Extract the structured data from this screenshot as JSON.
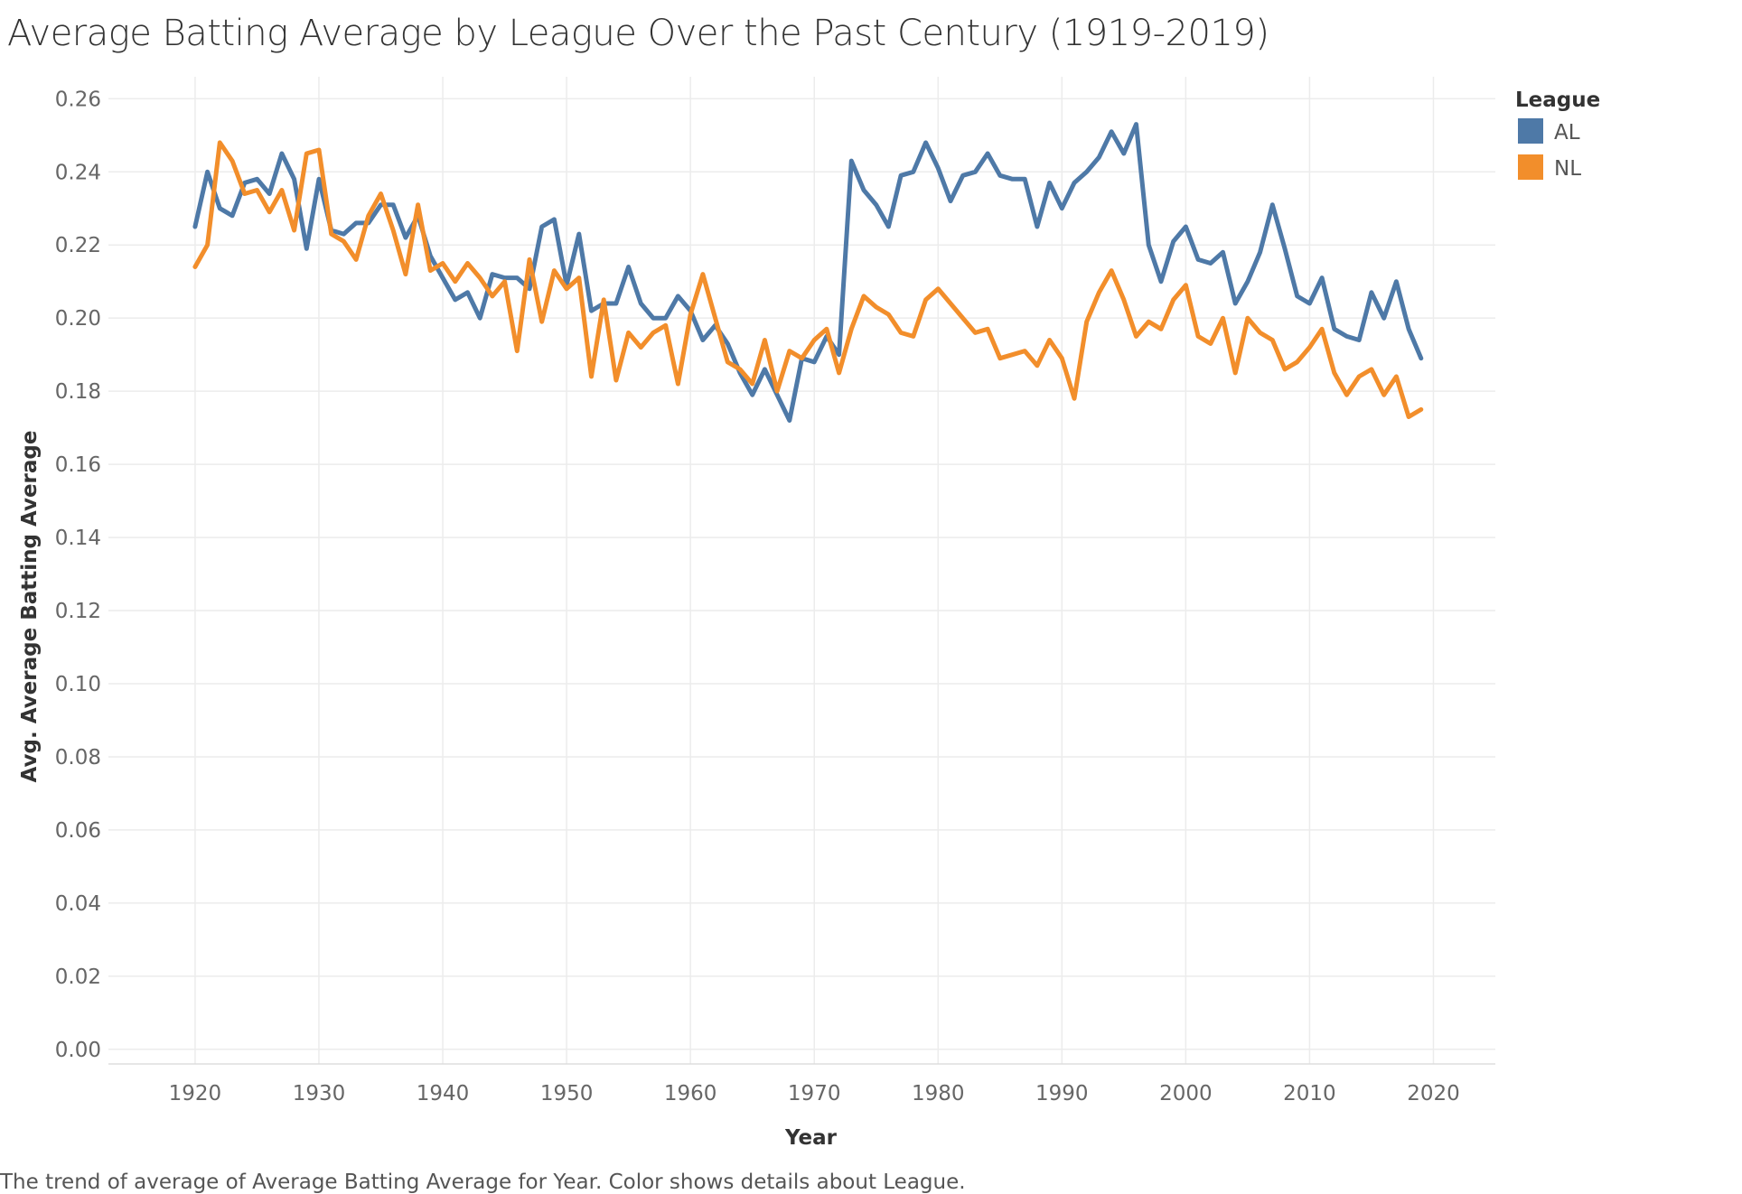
{
  "chart_data": {
    "type": "line",
    "title": "Average Batting Average by League Over the Past Century (1919-2019)",
    "caption": "The trend of average of Average Batting Average for Year.  Color shows details about League.",
    "xlabel": "Year",
    "ylabel": "Avg. Average Batting Average",
    "legend": {
      "title": "League",
      "position": "top-right"
    },
    "xlim": [
      1913,
      2025
    ],
    "ylim": [
      -0.004,
      0.266
    ],
    "x_ticks": [
      1920,
      1930,
      1940,
      1950,
      1960,
      1970,
      1980,
      1990,
      2000,
      2010,
      2020
    ],
    "y_ticks": [
      0.0,
      0.02,
      0.04,
      0.06,
      0.08,
      0.1,
      0.12,
      0.14,
      0.16,
      0.18,
      0.2,
      0.22,
      0.24,
      0.26
    ],
    "x_tick_labels": [
      "1920",
      "1930",
      "1940",
      "1950",
      "1960",
      "1970",
      "1980",
      "1990",
      "2000",
      "2010",
      "2020"
    ],
    "y_tick_labels": [
      "0.00",
      "0.02",
      "0.04",
      "0.06",
      "0.08",
      "0.10",
      "0.12",
      "0.14",
      "0.16",
      "0.18",
      "0.20",
      "0.22",
      "0.24",
      "0.26"
    ],
    "grid": true,
    "x": [
      1920,
      1921,
      1922,
      1923,
      1924,
      1925,
      1926,
      1927,
      1928,
      1929,
      1930,
      1931,
      1932,
      1933,
      1934,
      1935,
      1936,
      1937,
      1938,
      1939,
      1940,
      1941,
      1942,
      1943,
      1944,
      1945,
      1946,
      1947,
      1948,
      1949,
      1950,
      1951,
      1952,
      1953,
      1954,
      1955,
      1956,
      1957,
      1958,
      1959,
      1960,
      1961,
      1962,
      1963,
      1964,
      1965,
      1966,
      1967,
      1968,
      1969,
      1970,
      1971,
      1972,
      1973,
      1974,
      1975,
      1976,
      1977,
      1978,
      1979,
      1980,
      1981,
      1982,
      1983,
      1984,
      1985,
      1986,
      1987,
      1988,
      1989,
      1990,
      1991,
      1992,
      1993,
      1994,
      1995,
      1996,
      1997,
      1998,
      1999,
      2000,
      2001,
      2002,
      2003,
      2004,
      2005,
      2006,
      2007,
      2008,
      2009,
      2010,
      2011,
      2012,
      2013,
      2014,
      2015,
      2016,
      2017,
      2018,
      2019
    ],
    "series": [
      {
        "name": "AL",
        "color": "#4e79a7",
        "values": [
          0.225,
          0.24,
          0.23,
          0.228,
          0.237,
          0.238,
          0.234,
          0.245,
          0.238,
          0.219,
          0.238,
          0.224,
          0.223,
          0.226,
          0.226,
          0.231,
          0.231,
          0.222,
          0.228,
          0.217,
          0.211,
          0.205,
          0.207,
          0.2,
          0.212,
          0.211,
          0.211,
          0.208,
          0.225,
          0.227,
          0.209,
          0.223,
          0.202,
          0.204,
          0.204,
          0.214,
          0.204,
          0.2,
          0.2,
          0.206,
          0.202,
          0.194,
          0.198,
          0.193,
          0.185,
          0.179,
          0.186,
          0.179,
          0.172,
          0.189,
          0.188,
          0.195,
          0.19,
          0.243,
          0.235,
          0.231,
          0.225,
          0.239,
          0.24,
          0.248,
          0.241,
          0.232,
          0.239,
          0.24,
          0.245,
          0.239,
          0.238,
          0.238,
          0.225,
          0.237,
          0.23,
          0.237,
          0.24,
          0.244,
          0.251,
          0.245,
          0.253,
          0.22,
          0.21,
          0.221,
          0.225,
          0.216,
          0.215,
          0.218,
          0.204,
          0.21,
          0.218,
          0.231,
          0.219,
          0.206,
          0.204,
          0.211,
          0.197,
          0.195,
          0.194,
          0.207,
          0.2,
          0.21,
          0.197,
          0.189
        ]
      },
      {
        "name": "NL",
        "color": "#f28e2b",
        "values": [
          0.214,
          0.22,
          0.248,
          0.243,
          0.234,
          0.235,
          0.229,
          0.235,
          0.224,
          0.245,
          0.246,
          0.223,
          0.221,
          0.216,
          0.228,
          0.234,
          0.224,
          0.212,
          0.231,
          0.213,
          0.215,
          0.21,
          0.215,
          0.211,
          0.206,
          0.21,
          0.191,
          0.216,
          0.199,
          0.213,
          0.208,
          0.211,
          0.184,
          0.205,
          0.183,
          0.196,
          0.192,
          0.196,
          0.198,
          0.182,
          0.201,
          0.212,
          0.2,
          0.188,
          0.186,
          0.182,
          0.194,
          0.18,
          0.191,
          0.189,
          0.194,
          0.197,
          0.185,
          0.197,
          0.206,
          0.203,
          0.201,
          0.196,
          0.195,
          0.205,
          0.208,
          0.204,
          0.2,
          0.196,
          0.197,
          0.189,
          0.19,
          0.191,
          0.187,
          0.194,
          0.189,
          0.178,
          0.199,
          0.207,
          0.213,
          0.205,
          0.195,
          0.199,
          0.197,
          0.205,
          0.209,
          0.195,
          0.193,
          0.2,
          0.185,
          0.2,
          0.196,
          0.194,
          0.186,
          0.188,
          0.192,
          0.197,
          0.185,
          0.179,
          0.184,
          0.186,
          0.179,
          0.184,
          0.173,
          0.175
        ]
      }
    ]
  }
}
